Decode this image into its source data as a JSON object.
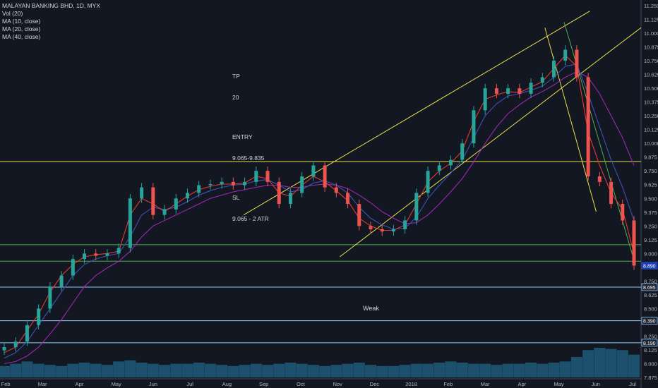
{
  "chart_title": "MALAYAN BANKING BHD, 1D, MYX",
  "indicators": [
    "Vol (20)",
    "MA (10, close)",
    "MA (20, close)",
    "MA (40, close)"
  ],
  "annotation": {
    "tp_label": "TP",
    "tp_value": "20",
    "entry_label": "ENTRY",
    "entry_value": "9.065-9.835",
    "sl_label": "SL",
    "sl_value": "9.065 - 2 ATR"
  },
  "weak_label": "Weak",
  "colors": {
    "background": "#131722",
    "up_candle": "#26a69a",
    "down_candle": "#ef5350",
    "ma10": "#e53935",
    "ma20": "#3f51b5",
    "ma40": "#9c27b0",
    "trendline": "#e7e04b",
    "support_green": "#4caf50",
    "level_blue": "#90caf9",
    "volume": "#1e5a7a"
  },
  "chart_data": {
    "type": "candlestick",
    "title": "MALAYAN BANKING BHD, 1D, MYX",
    "x_ticks": [
      "Feb",
      "Mar",
      "Apr",
      "May",
      "Jun",
      "Jul",
      "Aug",
      "Sep",
      "Oct",
      "Nov",
      "Dec",
      "2018",
      "Feb",
      "Mar",
      "Apr",
      "May",
      "Jun",
      "Jul"
    ],
    "y_ticks": [
      "11.250",
      "11.125",
      "11.000",
      "10.875",
      "10.750",
      "10.625",
      "10.500",
      "10.375",
      "10.250",
      "10.125",
      "10.000",
      "9.875",
      "9.750",
      "9.625",
      "9.500",
      "9.375",
      "9.250",
      "9.125",
      "9.000",
      "8.875",
      "8.750",
      "8.625",
      "8.500",
      "8.375",
      "8.250",
      "8.125",
      "8.000",
      "7.875"
    ],
    "ylim": [
      7.875,
      11.25
    ],
    "close_series": [
      8.15,
      8.2,
      8.35,
      8.5,
      8.7,
      8.8,
      8.95,
      9.0,
      8.98,
      9.0,
      9.05,
      9.5,
      9.6,
      9.35,
      9.4,
      9.5,
      9.55,
      9.62,
      9.63,
      9.65,
      9.62,
      9.65,
      9.75,
      9.65,
      9.45,
      9.55,
      9.7,
      9.8,
      9.6,
      9.55,
      9.45,
      9.25,
      9.22,
      9.2,
      9.22,
      9.3,
      9.55,
      9.75,
      9.8,
      9.85,
      10.0,
      10.3,
      10.5,
      10.45,
      10.5,
      10.45,
      10.55,
      10.6,
      10.75,
      10.85,
      10.6,
      9.7,
      9.65,
      9.45,
      9.3,
      8.89
    ],
    "ma10_series": [
      8.1,
      8.15,
      8.3,
      8.45,
      8.65,
      8.8,
      8.9,
      8.97,
      8.99,
      9.0,
      9.02,
      9.35,
      9.5,
      9.45,
      9.38,
      9.45,
      9.52,
      9.58,
      9.61,
      9.63,
      9.63,
      9.64,
      9.7,
      9.68,
      9.55,
      9.52,
      9.62,
      9.7,
      9.65,
      9.57,
      9.48,
      9.32,
      9.25,
      9.21,
      9.21,
      9.26,
      9.45,
      9.65,
      9.75,
      9.82,
      9.93,
      10.2,
      10.4,
      10.44,
      10.47,
      10.46,
      10.51,
      10.56,
      10.68,
      10.8,
      10.7,
      10.1,
      9.8,
      9.55,
      9.4,
      9.0
    ],
    "ma20_series": [
      8.05,
      8.1,
      8.2,
      8.35,
      8.5,
      8.65,
      8.8,
      8.9,
      8.95,
      8.98,
      9.0,
      9.15,
      9.35,
      9.42,
      9.4,
      9.42,
      9.47,
      9.53,
      9.57,
      9.6,
      9.62,
      9.63,
      9.66,
      9.67,
      9.62,
      9.56,
      9.58,
      9.64,
      9.66,
      9.62,
      9.55,
      9.42,
      9.32,
      9.26,
      9.22,
      9.23,
      9.33,
      9.5,
      9.62,
      9.73,
      9.85,
      10.05,
      10.25,
      10.36,
      10.43,
      10.45,
      10.48,
      10.52,
      10.6,
      10.7,
      10.72,
      10.45,
      10.15,
      9.85,
      9.6,
      9.3
    ],
    "ma40_series": [
      8.0,
      8.02,
      8.07,
      8.15,
      8.27,
      8.4,
      8.55,
      8.7,
      8.8,
      8.87,
      8.93,
      9.02,
      9.15,
      9.25,
      9.3,
      9.35,
      9.4,
      9.45,
      9.5,
      9.53,
      9.56,
      9.58,
      9.6,
      9.62,
      9.62,
      9.6,
      9.6,
      9.62,
      9.63,
      9.62,
      9.59,
      9.53,
      9.46,
      9.38,
      9.32,
      9.27,
      9.28,
      9.35,
      9.45,
      9.56,
      9.68,
      9.83,
      10.0,
      10.15,
      10.27,
      10.35,
      10.42,
      10.47,
      10.53,
      10.6,
      10.65,
      10.6,
      10.45,
      10.25,
      10.05,
      9.8
    ],
    "volume_series": [
      10,
      12,
      14,
      12,
      11,
      10,
      12,
      13,
      12,
      11,
      14,
      15,
      13,
      12,
      11,
      12,
      12,
      13,
      12,
      11,
      10,
      11,
      12,
      11,
      12,
      13,
      12,
      11,
      10,
      11,
      12,
      13,
      11,
      10,
      10,
      11,
      12,
      12,
      13,
      14,
      13,
      12,
      12,
      11,
      12,
      12,
      13,
      12,
      13,
      14,
      18,
      24,
      26,
      25,
      24,
      20
    ],
    "horizontal_levels": [
      9.835,
      9.08,
      8.93,
      8.695,
      8.39,
      8.19
    ],
    "price_markers": [
      {
        "label": "8.890",
        "value": 8.89
      },
      {
        "label": "8.695",
        "value": 8.695
      },
      {
        "label": "8.390",
        "value": 8.39
      },
      {
        "label": "8.190",
        "value": 8.19
      }
    ]
  }
}
